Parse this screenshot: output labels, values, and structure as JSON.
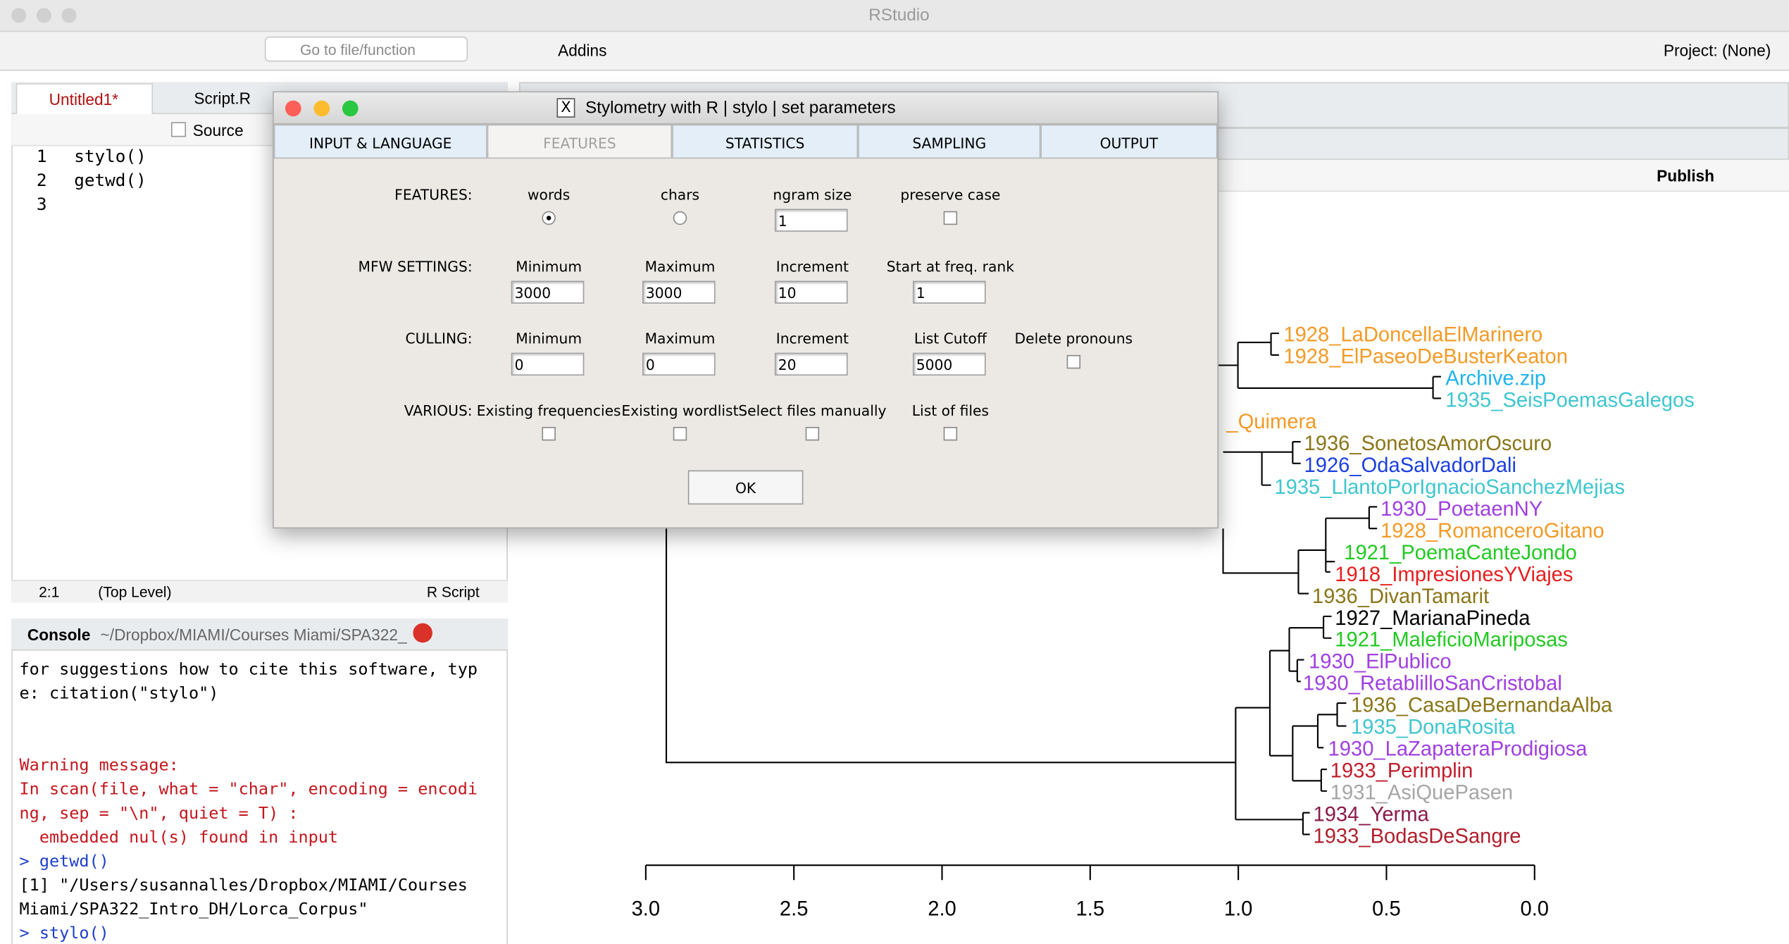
{
  "window": {
    "title": "RStudio"
  },
  "toolbar": {
    "goto": "Go to file/function",
    "addins": "Addins",
    "project": "Project: (None)"
  },
  "editor": {
    "tabs": [
      "Untitled1*",
      "Script.R"
    ],
    "source": "Source",
    "line_numbers": [
      "1",
      "2",
      "3"
    ],
    "code": [
      "stylo()",
      "getwd()"
    ],
    "status": {
      "position": "2:1",
      "scope": "(Top Level)",
      "filetype": "R Script"
    }
  },
  "console": {
    "title": "Console",
    "path": "~/Dropbox/MIAMI/Courses Miami/SPA322_",
    "lines": [
      {
        "text": "for suggestions how to cite this software, typ",
        "color": "#000000"
      },
      {
        "text": "e: citation(\"stylo\")",
        "color": "#000000"
      },
      {
        "text": "Warning message:",
        "color": "#c4161c"
      },
      {
        "text": "In scan(file, what = \"char\", encoding = encodi",
        "color": "#c4161c"
      },
      {
        "text": "ng, sep = \"\\n\", quiet = T) :",
        "color": "#c4161c"
      },
      {
        "text": "  embedded nul(s) found in input",
        "color": "#c4161c"
      },
      {
        "text": "> getwd()",
        "color": "#1d3fc8"
      },
      {
        "text": "[1] \"/Users/susannalles/Dropbox/MIAMI/Courses",
        "color": "#000000"
      },
      {
        "text": "Miami/SPA322_Intro_DH/Lorca_Corpus\"",
        "color": "#000000"
      },
      {
        "text": "> stylo()",
        "color": "#1d3fc8"
      }
    ]
  },
  "viewer": {
    "publish": "Publish"
  },
  "dialog": {
    "title": "Stylometry with R | stylo | set parameters",
    "tabs": [
      "INPUT & LANGUAGE",
      "FEATURES",
      "STATISTICS",
      "SAMPLING",
      "OUTPUT"
    ],
    "active_tab": 1,
    "rows": [
      {
        "label": "FEATURES:",
        "fields": [
          {
            "label": "words",
            "type": "radio",
            "checked": true
          },
          {
            "label": "chars",
            "type": "radio",
            "checked": false
          },
          {
            "label": "ngram size",
            "type": "input",
            "value": "1"
          },
          {
            "label": "preserve case",
            "type": "checkbox",
            "checked": false
          }
        ]
      },
      {
        "label": "MFW SETTINGS:",
        "fields": [
          {
            "label": "Minimum",
            "type": "input",
            "value": "3000"
          },
          {
            "label": "Maximum",
            "type": "input",
            "value": "3000"
          },
          {
            "label": "Increment",
            "type": "input",
            "value": "10"
          },
          {
            "label": "Start at freq. rank",
            "type": "input",
            "value": "1"
          }
        ]
      },
      {
        "label": "CULLING:",
        "fields": [
          {
            "label": "Minimum",
            "type": "input",
            "value": "0"
          },
          {
            "label": "Maximum",
            "type": "input",
            "value": "0"
          },
          {
            "label": "Increment",
            "type": "input",
            "value": "20"
          },
          {
            "label": "List Cutoff",
            "type": "input",
            "value": "5000"
          },
          {
            "label": "Delete pronouns",
            "type": "checkbox",
            "checked": false
          }
        ]
      },
      {
        "label": "VARIOUS:",
        "fields": [
          {
            "label": "Existing frequencies",
            "type": "checkbox",
            "checked": false
          },
          {
            "label": "Existing wordlist",
            "type": "checkbox",
            "checked": false
          },
          {
            "label": "Select files manually",
            "type": "checkbox",
            "checked": false
          },
          {
            "label": "List of files",
            "type": "checkbox",
            "checked": false
          }
        ]
      }
    ],
    "button": "OK"
  },
  "plot": {
    "leaves": [
      {
        "label": "1928_LaDoncellaElMarinero",
        "color": "#f39a26"
      },
      {
        "label": "1928_ElPaseoDeBusterKeaton",
        "color": "#f39a26"
      },
      {
        "label": "Archive.zip",
        "color": "#1fb3ea"
      },
      {
        "label": "1935_SeisPoemasGalegos",
        "color": "#3fc6cf"
      },
      {
        "label": "_Quimera",
        "color": "#f39a26"
      },
      {
        "label": "1936_SonetosAmorOscuro",
        "color": "#8a7618"
      },
      {
        "label": "1926_OdaSalvadorDali",
        "color": "#1b3fe0"
      },
      {
        "label": "1935_LlantoPorIgnacioSanchezMejias",
        "color": "#3fc6cf"
      },
      {
        "label": "1930_PoetaenNY",
        "color": "#a03fe0"
      },
      {
        "label": "1928_RomanceroGitano",
        "color": "#f39a26"
      },
      {
        "label": "1921_PoemaCanteJondo",
        "color": "#22c922"
      },
      {
        "label": "1918_ImpresionesYViajes",
        "color": "#e51f1f"
      },
      {
        "label": "1936_DivanTamarit",
        "color": "#8a7618"
      },
      {
        "label": "1927_MarianaPineda",
        "color": "#000000"
      },
      {
        "label": "1921_MaleficioMariposas",
        "color": "#22c922"
      },
      {
        "label": "1930_ElPublico",
        "color": "#a03fe0"
      },
      {
        "label": "1930_RetablilloSanCristobal",
        "color": "#a03fe0"
      },
      {
        "label": "1936_CasaDeBernandaAlba",
        "color": "#8a7618"
      },
      {
        "label": "1935_DonaRosita",
        "color": "#3fc6cf"
      },
      {
        "label": "1930_LaZapateraProdigiosa",
        "color": "#a03fe0"
      },
      {
        "label": "1933_Perimplin",
        "color": "#c01e2c"
      },
      {
        "label": "1931_AsiQuePasen",
        "color": "#a6a6a6"
      },
      {
        "label": "1934_Yerma",
        "color": "#8b1a4c"
      },
      {
        "label": "1933_BodasDeSangre",
        "color": "#b01f2c"
      }
    ],
    "axis_ticks": [
      "3.0",
      "2.5",
      "2.0",
      "1.5",
      "1.0",
      "0.5",
      "0.0"
    ]
  }
}
